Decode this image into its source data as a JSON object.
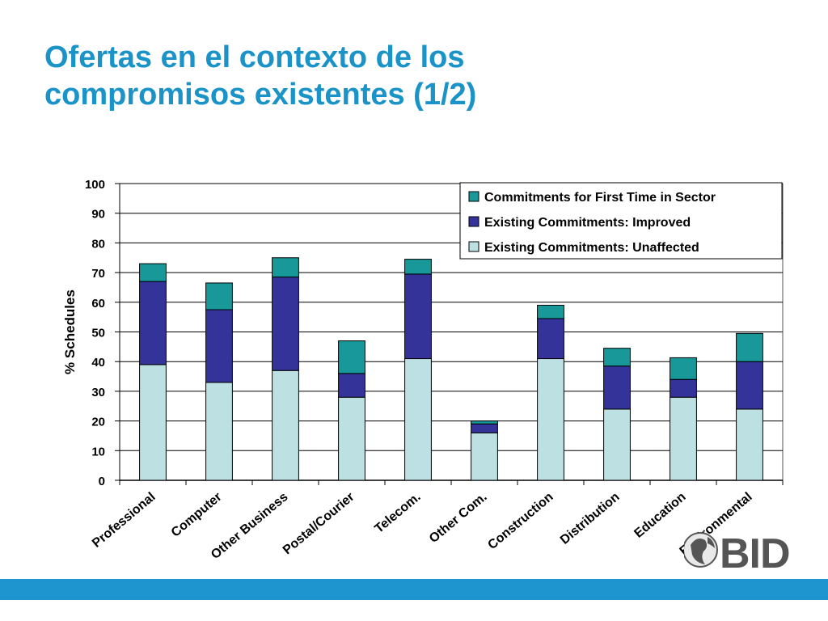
{
  "title": {
    "line1": "Ofertas en el contexto de los",
    "line2": "compromisos existentes (1/2)"
  },
  "logo": {
    "text": "BID"
  },
  "colors": {
    "title": "#1a93c8",
    "unaffected": "#bde0e3",
    "improved": "#33339a",
    "first_time": "#189898",
    "footer_bar": "#1e95cf"
  },
  "chart_data": {
    "type": "bar",
    "stacked": true,
    "ylabel": "% Schedules",
    "ylim": [
      0,
      100
    ],
    "yticks": [
      0,
      10,
      20,
      30,
      40,
      50,
      60,
      70,
      80,
      90,
      100
    ],
    "grid": true,
    "legend_position": "top-right",
    "categories": [
      "Professional",
      "Computer",
      "Other Business",
      "Postal/Courier",
      "Telecom.",
      "Other Com.",
      "Construction",
      "Distribution",
      "Education",
      "Environmental"
    ],
    "series": [
      {
        "name": "Existing Commitments: Unaffected",
        "color": "#bde0e3",
        "values": [
          39,
          33,
          37,
          28,
          41,
          16,
          41,
          24,
          28,
          24
        ]
      },
      {
        "name": "Existing Commitments: Improved",
        "color": "#33339a",
        "values": [
          28,
          24.5,
          31.5,
          8,
          28.5,
          3,
          13.5,
          14.5,
          6,
          16
        ]
      },
      {
        "name": "Commitments for First Time in Sector",
        "color": "#189898",
        "values": [
          6,
          9,
          6.5,
          11,
          5,
          1,
          4.5,
          6,
          7.3,
          9.5
        ]
      }
    ],
    "legend_order": [
      2,
      1,
      0
    ]
  }
}
